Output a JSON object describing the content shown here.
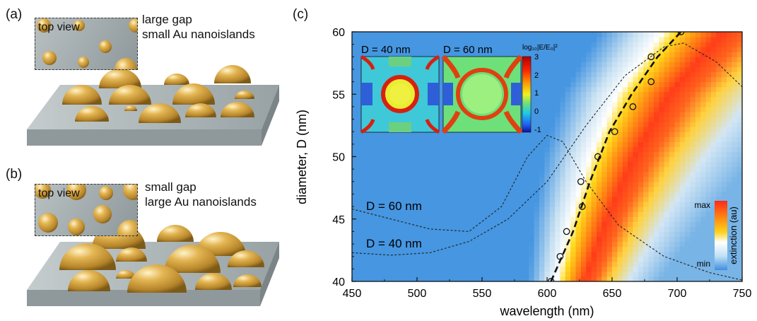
{
  "panels": {
    "a": {
      "label": "(a)",
      "caption_line1": "large gap",
      "caption_line2": "small Au nanoislands",
      "topview_label": "top view"
    },
    "b": {
      "label": "(b)",
      "caption_line1": "small gap",
      "caption_line2": "large Au nanoislands",
      "topview_label": "top view"
    },
    "c": {
      "label": "(c)"
    }
  },
  "colors": {
    "gold": "#d4a43a",
    "substrate": "#a9b3b5",
    "dashed_line": "#222222",
    "colorbar_max": "#ff2a1a",
    "colorbar_min": "#3f8fe0"
  },
  "chart_data": {
    "type": "heatmap",
    "xlabel": "wavelength (nm)",
    "ylabel": "diameter, D (nm)",
    "xlim": [
      450,
      750
    ],
    "ylim": [
      40,
      60
    ],
    "xticks": [
      "450",
      "500",
      "550",
      "600",
      "650",
      "700",
      "750"
    ],
    "yticks": [
      "40",
      "45",
      "50",
      "55",
      "60"
    ],
    "heatmap_peak_wavelength_at_D": [
      {
        "D": 40,
        "wavelength": 615
      },
      {
        "D": 45,
        "wavelength": 628
      },
      {
        "D": 50,
        "wavelength": 645
      },
      {
        "D": 55,
        "wavelength": 668
      },
      {
        "D": 60,
        "wavelength": 705
      }
    ],
    "measured_points": [
      {
        "x": 603,
        "y": 40
      },
      {
        "x": 610,
        "y": 42
      },
      {
        "x": 615,
        "y": 44
      },
      {
        "x": 627,
        "y": 46
      },
      {
        "x": 626,
        "y": 48
      },
      {
        "x": 639,
        "y": 50
      },
      {
        "x": 652,
        "y": 52
      },
      {
        "x": 666,
        "y": 54
      },
      {
        "x": 680,
        "y": 56
      },
      {
        "x": 680,
        "y": 58
      },
      {
        "x": 703,
        "y": 60
      }
    ],
    "fit_line": [
      {
        "x": 603,
        "y": 40
      },
      {
        "x": 620,
        "y": 44
      },
      {
        "x": 633,
        "y": 48
      },
      {
        "x": 648,
        "y": 52
      },
      {
        "x": 665,
        "y": 55
      },
      {
        "x": 685,
        "y": 58
      },
      {
        "x": 703,
        "y": 60
      }
    ],
    "spectra": [
      {
        "label": "D = 40 nm",
        "points": [
          {
            "x": 450,
            "y": 42.3
          },
          {
            "x": 480,
            "y": 42.1
          },
          {
            "x": 510,
            "y": 42.3
          },
          {
            "x": 540,
            "y": 43.2
          },
          {
            "x": 570,
            "y": 45.0
          },
          {
            "x": 600,
            "y": 48.0
          },
          {
            "x": 630,
            "y": 52.5
          },
          {
            "x": 660,
            "y": 56.5
          },
          {
            "x": 690,
            "y": 58.8
          },
          {
            "x": 705,
            "y": 59.1
          },
          {
            "x": 730,
            "y": 57.6
          },
          {
            "x": 750,
            "y": 55.6
          }
        ]
      },
      {
        "label": "D = 60 nm",
        "points": [
          {
            "x": 450,
            "y": 45.8
          },
          {
            "x": 480,
            "y": 45.0
          },
          {
            "x": 510,
            "y": 44.2
          },
          {
            "x": 540,
            "y": 44.0
          },
          {
            "x": 565,
            "y": 46.0
          },
          {
            "x": 585,
            "y": 50.0
          },
          {
            "x": 600,
            "y": 51.7
          },
          {
            "x": 612,
            "y": 51.2
          },
          {
            "x": 630,
            "y": 48.0
          },
          {
            "x": 655,
            "y": 44.5
          },
          {
            "x": 690,
            "y": 42.0
          },
          {
            "x": 725,
            "y": 40.7
          },
          {
            "x": 750,
            "y": 40.1
          }
        ]
      }
    ],
    "inset": {
      "maps": [
        {
          "title": "D = 40 nm"
        },
        {
          "title": "D = 60 nm"
        }
      ],
      "colorbar_title": "log₁₀|E/E₀|²",
      "colorbar_ticks": [
        "3",
        "2",
        "1",
        "0",
        "-1"
      ]
    },
    "colorbar": {
      "max_label": "max",
      "min_label": "min",
      "title": "extinction (au)"
    }
  }
}
